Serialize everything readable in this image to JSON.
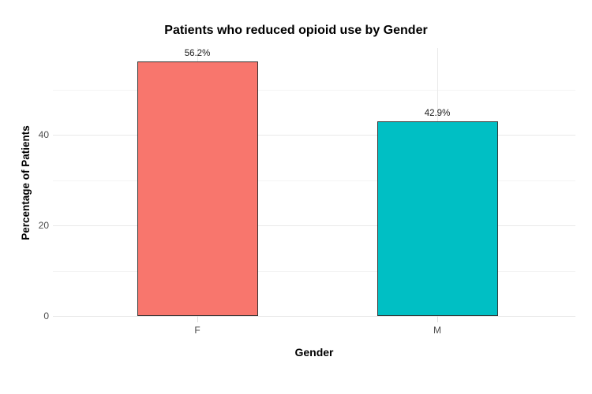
{
  "chart_data": {
    "type": "bar",
    "title": "Patients who reduced opioid use by Gender",
    "xlabel": "Gender",
    "ylabel": "Percentage of Patients",
    "categories": [
      "F",
      "M"
    ],
    "values": [
      56.2,
      42.9
    ],
    "value_labels": [
      "56.2%",
      "42.9%"
    ],
    "bar_colors": [
      "#F8766D",
      "#00BFC4"
    ],
    "bar_border_color": "#333333",
    "ylim": [
      0,
      59
    ],
    "y_major_ticks": [
      0,
      20,
      40
    ],
    "y_minor_gridlines": [
      10,
      30,
      50
    ],
    "grid": true,
    "legend": "none",
    "background_color": "#FFFFFF",
    "gridline_color_major": "#E9E9E9",
    "gridline_color_minor": "#F4F4F4",
    "tick_mark_color": "#DDDDDD",
    "axis_text_color": "#4D4D4D",
    "title_color": "#000000"
  }
}
